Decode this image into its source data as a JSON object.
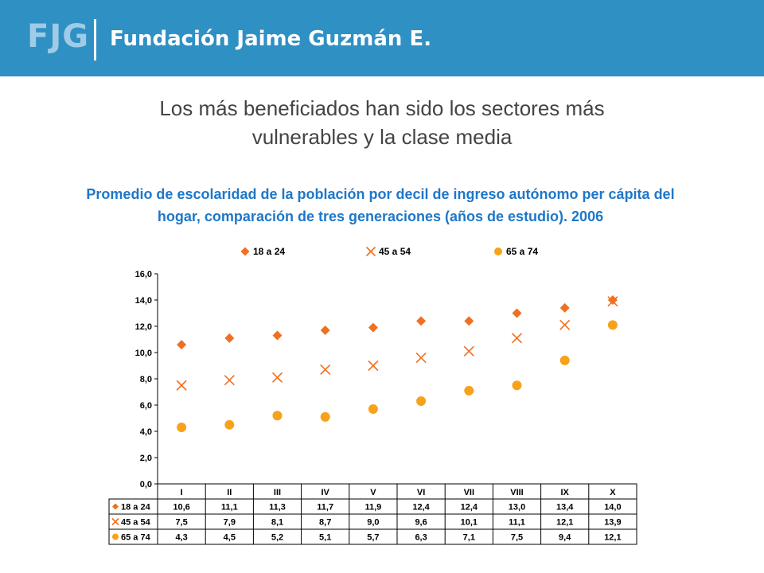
{
  "header": {
    "logo_text": "FJG",
    "org_name": "Fundación Jaime Guzmán E.",
    "colors": {
      "background": "#2f90c4",
      "logo": "#9fcbe6",
      "text": "#ffffff"
    }
  },
  "slide": {
    "title_line1": "Los más beneficiados han sido los sectores más",
    "title_line2": "vulnerables y la clase media"
  },
  "chart_data": {
    "type": "scatter",
    "title_line1": "Promedio de escolaridad de la población por  decil de ingreso autónomo per cápita del",
    "title_line2": "hogar, comparación de tres generaciones (años de estudio). 2006",
    "categories": [
      "I",
      "II",
      "III",
      "IV",
      "V",
      "VI",
      "VII",
      "VIII",
      "IX",
      "X"
    ],
    "ylim": [
      0,
      16
    ],
    "yticks": [
      "0,0",
      "2,0",
      "4,0",
      "6,0",
      "8,0",
      "10,0",
      "12,0",
      "14,0",
      "16,0"
    ],
    "legend_position": "top",
    "grid": false,
    "series": [
      {
        "name": "18 a 24",
        "marker": "diamond",
        "color": "#f07020",
        "values": [
          10.6,
          11.1,
          11.3,
          11.7,
          11.9,
          12.4,
          12.4,
          13.0,
          13.4,
          14.0
        ],
        "labels": [
          "10,6",
          "11,1",
          "11,3",
          "11,7",
          "11,9",
          "12,4",
          "12,4",
          "13,0",
          "13,4",
          "14,0"
        ]
      },
      {
        "name": "45 a 54",
        "marker": "x",
        "color": "#f07020",
        "values": [
          7.5,
          7.9,
          8.1,
          8.7,
          9.0,
          9.6,
          10.1,
          11.1,
          12.1,
          13.9
        ],
        "labels": [
          "7,5",
          "7,9",
          "8,1",
          "8,7",
          "9,0",
          "9,6",
          "10,1",
          "11,1",
          "12,1",
          "13,9"
        ]
      },
      {
        "name": "65 a 74",
        "marker": "circle",
        "color": "#f7a21a",
        "values": [
          4.3,
          4.5,
          5.2,
          5.1,
          5.7,
          6.3,
          7.1,
          7.5,
          9.4,
          12.1
        ],
        "labels": [
          "4,3",
          "4,5",
          "5,2",
          "5,1",
          "5,7",
          "6,3",
          "7,1",
          "7,5",
          "9,4",
          "12,1"
        ]
      }
    ]
  }
}
